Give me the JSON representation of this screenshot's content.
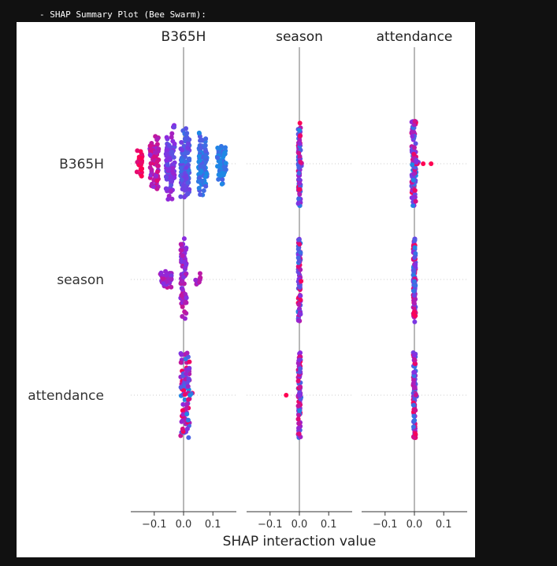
{
  "console": {
    "output_line": "- SHAP Summary Plot (Bee Swarm):"
  },
  "chart_data": {
    "type": "scatter",
    "subtype": "shap-interaction-beeswarm",
    "column_titles": [
      "B365H",
      "season",
      "attendance"
    ],
    "row_labels": [
      "B365H",
      "season",
      "attendance"
    ],
    "xlabel": "SHAP interaction value",
    "xlim": [
      -0.18,
      0.18
    ],
    "x_ticks": [
      {
        "value": -0.1,
        "label": "−0.1"
      },
      {
        "value": 0.0,
        "label": "0.0"
      },
      {
        "value": 0.1,
        "label": "0.1"
      }
    ],
    "color_scale": {
      "low": "#1e88e5",
      "mid": "#8a2be2",
      "high": "#ff0052"
    },
    "axis_line_color": "#999999",
    "grid": "dotted horizontal per row",
    "cells": [
      {
        "row": "B365H",
        "col": "B365H",
        "min": -0.15,
        "max": 0.16,
        "spread": 0.5,
        "clusters": [
          {
            "x": -0.15,
            "w": 0.018,
            "h": 0.4,
            "c": 1.0
          },
          {
            "x": -0.1,
            "w": 0.03,
            "h": 0.75,
            "c": 0.7
          },
          {
            "x": -0.045,
            "w": 0.03,
            "h": 0.95,
            "c": 0.45
          },
          {
            "x": 0.005,
            "w": 0.03,
            "h": 0.95,
            "c": 0.25
          },
          {
            "x": 0.065,
            "w": 0.03,
            "h": 0.85,
            "c": 0.1
          },
          {
            "x": 0.13,
            "w": 0.03,
            "h": 0.55,
            "c": 0.05
          }
        ]
      },
      {
        "row": "B365H",
        "col": "season",
        "min": -0.004,
        "max": 0.004,
        "spread": 0.5,
        "outliers": []
      },
      {
        "row": "B365H",
        "col": "attendance",
        "min": -0.01,
        "max": 0.006,
        "spread": 0.5,
        "outliers": [
          {
            "x": 0.03,
            "c": 1.0
          },
          {
            "x": 0.057,
            "c": 1.0
          }
        ]
      },
      {
        "row": "season",
        "col": "B365H",
        "min": -0.09,
        "max": 0.07,
        "spread": 0.5,
        "clusters": [
          {
            "x": -0.06,
            "w": 0.04,
            "h": 0.2,
            "c": 0.6
          },
          {
            "x": 0.0,
            "w": 0.02,
            "h": 1.0,
            "c": 0.6
          },
          {
            "x": 0.05,
            "w": 0.02,
            "h": 0.15,
            "c": 0.7
          }
        ]
      },
      {
        "row": "season",
        "col": "season",
        "min": -0.004,
        "max": 0.004,
        "spread": 0.5,
        "outliers": []
      },
      {
        "row": "season",
        "col": "attendance",
        "min": -0.004,
        "max": 0.004,
        "spread": 0.5,
        "outliers": []
      },
      {
        "row": "attendance",
        "col": "B365H",
        "min": -0.01,
        "max": 0.02,
        "spread": 0.5,
        "outliers": [
          {
            "x": 0.022,
            "c": 0.0
          }
        ]
      },
      {
        "row": "attendance",
        "col": "season",
        "min": -0.004,
        "max": 0.004,
        "spread": 0.5,
        "outliers": [
          {
            "x": -0.045,
            "c": 1.0
          }
        ]
      },
      {
        "row": "attendance",
        "col": "attendance",
        "min": -0.004,
        "max": 0.004,
        "spread": 0.5,
        "outliers": []
      }
    ]
  }
}
